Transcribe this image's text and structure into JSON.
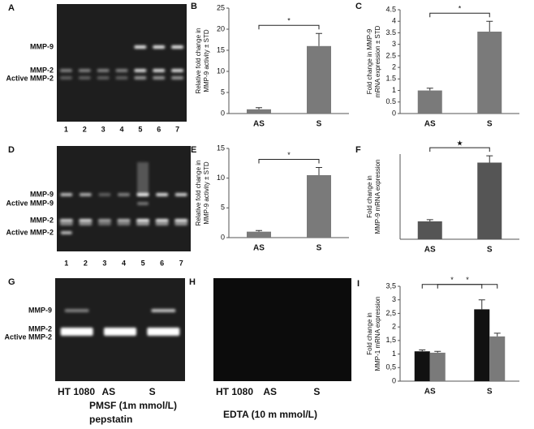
{
  "gels": [
    {
      "panel": "A",
      "bands": [
        "MMP-9",
        "MMP-2",
        "Active MMP-2"
      ],
      "lanes": [
        "1",
        "2",
        "3",
        "4",
        "5",
        "6",
        "7"
      ]
    },
    {
      "panel": "D",
      "bands": [
        "MMP-9",
        "Active MMP-9",
        "MMP-2",
        "Active MMP-2"
      ],
      "lanes": [
        "1",
        "2",
        "3",
        "4",
        "5",
        "6",
        "7"
      ]
    },
    {
      "panel": "G",
      "bands": [
        "MMP-9",
        "MMP-2",
        "Active MMP-2"
      ],
      "lanes": [
        "HT 1080",
        "AS",
        "S"
      ],
      "caption": [
        "PMSF (1m mmol/L)",
        "pepstatin"
      ]
    },
    {
      "panel": "H",
      "lanes": [
        "HT 1080",
        "AS",
        "S"
      ],
      "caption": [
        "EDTA (10 m mmol/L)"
      ]
    }
  ],
  "chart_data": [
    {
      "type": "bar",
      "panel": "B",
      "ylabel": "Relative fold change in MMP-9 activity ± STD",
      "categories": [
        "AS",
        "S"
      ],
      "series": [
        {
          "color": "#7a7a7a",
          "values": [
            1,
            16
          ],
          "errors": [
            0.4,
            3
          ]
        }
      ],
      "ylim": [
        0,
        25
      ],
      "yticks": [
        0,
        5,
        10,
        15,
        20,
        25
      ],
      "annotations": [
        "*"
      ]
    },
    {
      "type": "bar",
      "panel": "C",
      "ylabel": "Fold change in MMP-9 mRNA expression ± STD",
      "categories": [
        "AS",
        "S"
      ],
      "series": [
        {
          "color": "#7a7a7a",
          "values": [
            1.0,
            3.55
          ],
          "errors": [
            0.1,
            0.45
          ]
        }
      ],
      "ylim": [
        0,
        4.5
      ],
      "yticks": [
        0,
        0.5,
        1,
        1.5,
        2,
        2.5,
        3,
        3.5,
        4,
        4.5
      ],
      "annotations": [
        "*"
      ]
    },
    {
      "type": "bar",
      "panel": "E",
      "ylabel": "Relative fold change in MMP-9 activity ± STD",
      "categories": [
        "AS",
        "S"
      ],
      "series": [
        {
          "color": "#7a7a7a",
          "values": [
            1,
            10.5
          ],
          "errors": [
            0.2,
            1.3
          ]
        }
      ],
      "ylim": [
        0,
        15
      ],
      "yticks": [
        0,
        5,
        10,
        15
      ],
      "annotations": [
        "*"
      ]
    },
    {
      "type": "bar",
      "panel": "F",
      "ylabel": "Fold change in MMP-9 mRNA expression",
      "categories": [
        "AS",
        "S"
      ],
      "series": [
        {
          "color": "#555555",
          "values": [
            1.05,
            4.5
          ],
          "errors": [
            0.1,
            0.4
          ]
        }
      ],
      "ylim": [
        0,
        5
      ],
      "yticks": [],
      "annotations": [
        "★"
      ]
    },
    {
      "type": "bar",
      "panel": "I",
      "ylabel": "Fold change in MMP-1 mRNA expression",
      "categories": [
        "AS",
        "S"
      ],
      "series": [
        {
          "color": "#111111",
          "values": [
            1.1,
            2.65
          ],
          "errors": [
            0.05,
            0.35
          ]
        },
        {
          "color": "#7a7a7a",
          "values": [
            1.05,
            1.65
          ],
          "errors": [
            0.05,
            0.12
          ]
        }
      ],
      "ylim": [
        0,
        3.5
      ],
      "yticks": [
        0,
        {
          "value": 0.5,
          "label": "0,5"
        },
        1,
        {
          "value": 1.5,
          "label": "1,5"
        },
        2,
        {
          "value": 2.5,
          "label": "2,5"
        },
        3,
        {
          "value": 3.5,
          "label": "3,5"
        }
      ],
      "annotations": [
        "*",
        "*"
      ]
    }
  ]
}
